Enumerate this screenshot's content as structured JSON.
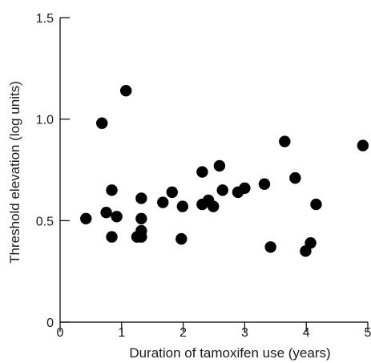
{
  "chart_data": {
    "type": "scatter",
    "title": "",
    "xlabel": "Duration of tamoxifen use (years)",
    "ylabel": "Threshold elevation (log units)",
    "xlim": [
      0,
      5
    ],
    "ylim": [
      0,
      1.5
    ],
    "x_ticks": [
      "0",
      "1",
      "2",
      "3",
      "4",
      "5"
    ],
    "y_ticks": [
      "0",
      "0.5",
      "1.0",
      "1.5"
    ],
    "grid": false,
    "legend": false,
    "point_color": "#000000",
    "points": [
      {
        "x": 0.42,
        "y": 0.51
      },
      {
        "x": 0.68,
        "y": 0.98
      },
      {
        "x": 0.75,
        "y": 0.54
      },
      {
        "x": 0.84,
        "y": 0.65
      },
      {
        "x": 0.84,
        "y": 0.42
      },
      {
        "x": 0.92,
        "y": 0.52
      },
      {
        "x": 1.07,
        "y": 1.14
      },
      {
        "x": 1.25,
        "y": 0.42
      },
      {
        "x": 1.32,
        "y": 0.61
      },
      {
        "x": 1.32,
        "y": 0.51
      },
      {
        "x": 1.32,
        "y": 0.45
      },
      {
        "x": 1.32,
        "y": 0.42
      },
      {
        "x": 1.67,
        "y": 0.59
      },
      {
        "x": 1.82,
        "y": 0.64
      },
      {
        "x": 1.97,
        "y": 0.41
      },
      {
        "x": 1.99,
        "y": 0.57
      },
      {
        "x": 2.31,
        "y": 0.74
      },
      {
        "x": 2.31,
        "y": 0.58
      },
      {
        "x": 2.41,
        "y": 0.6
      },
      {
        "x": 2.49,
        "y": 0.57
      },
      {
        "x": 2.59,
        "y": 0.77
      },
      {
        "x": 2.64,
        "y": 0.65
      },
      {
        "x": 2.89,
        "y": 0.64
      },
      {
        "x": 3.0,
        "y": 0.66
      },
      {
        "x": 3.32,
        "y": 0.68
      },
      {
        "x": 3.42,
        "y": 0.37
      },
      {
        "x": 3.65,
        "y": 0.89
      },
      {
        "x": 3.82,
        "y": 0.71
      },
      {
        "x": 3.99,
        "y": 0.35
      },
      {
        "x": 4.07,
        "y": 0.39
      },
      {
        "x": 4.16,
        "y": 0.58
      },
      {
        "x": 4.92,
        "y": 0.87
      }
    ]
  }
}
